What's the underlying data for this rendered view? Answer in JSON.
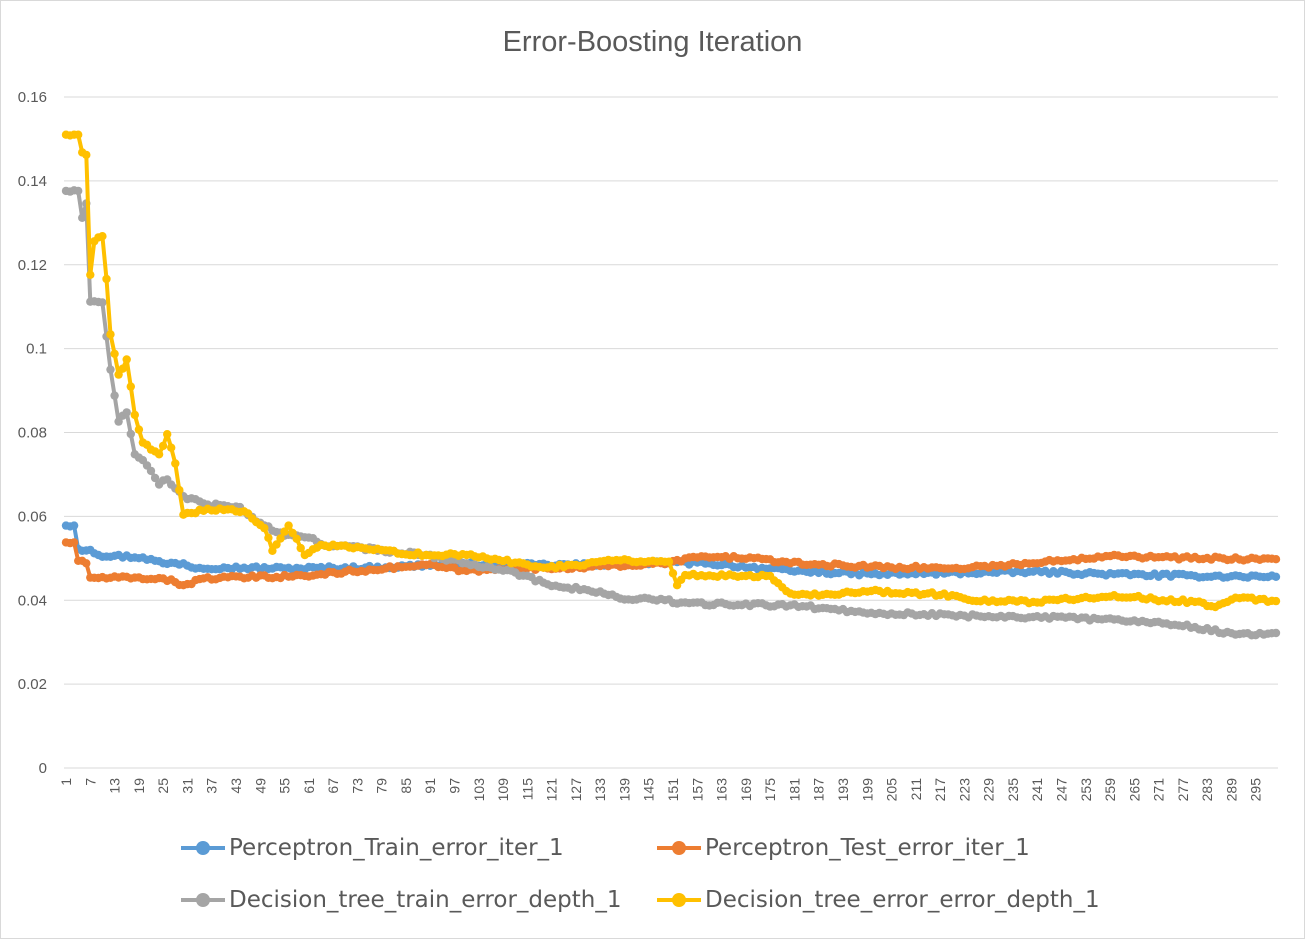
{
  "chart_data": {
    "type": "line",
    "title": "Error-Boosting Iteration",
    "xlabel": "",
    "ylabel": "",
    "ylim": [
      0,
      0.16
    ],
    "yticks": [
      "0",
      "0.02",
      "0.04",
      "0.06",
      "0.08",
      "0.1",
      "0.12",
      "0.14",
      "0.16"
    ],
    "x_range": [
      1,
      300
    ],
    "x_tick_step": 6,
    "grid": true,
    "legend_position": "bottom",
    "series": [
      {
        "name": "Perceptron_Train_error_iter_1",
        "color": "#5b9bd5",
        "keypoints": [
          [
            1,
            0.0578
          ],
          [
            3,
            0.0578
          ],
          [
            4,
            0.0522
          ],
          [
            7,
            0.052
          ],
          [
            9,
            0.0508
          ],
          [
            20,
            0.0502
          ],
          [
            25,
            0.0488
          ],
          [
            30,
            0.0488
          ],
          [
            32,
            0.0478
          ],
          [
            40,
            0.0478
          ],
          [
            55,
            0.0476
          ],
          [
            80,
            0.0478
          ],
          [
            90,
            0.0484
          ],
          [
            100,
            0.0486
          ],
          [
            120,
            0.0484
          ],
          [
            140,
            0.0486
          ],
          [
            150,
            0.049
          ],
          [
            160,
            0.0488
          ],
          [
            180,
            0.047
          ],
          [
            200,
            0.0462
          ],
          [
            240,
            0.0468
          ],
          [
            260,
            0.0462
          ],
          [
            280,
            0.0458
          ],
          [
            300,
            0.0456
          ]
        ]
      },
      {
        "name": "Perceptron_Test_error_iter_1",
        "color": "#ed7d31",
        "keypoints": [
          [
            1,
            0.0538
          ],
          [
            3,
            0.0538
          ],
          [
            4,
            0.0494
          ],
          [
            6,
            0.0488
          ],
          [
            7,
            0.0454
          ],
          [
            25,
            0.0452
          ],
          [
            30,
            0.0436
          ],
          [
            35,
            0.0452
          ],
          [
            60,
            0.0458
          ],
          [
            70,
            0.0468
          ],
          [
            80,
            0.0476
          ],
          [
            90,
            0.0484
          ],
          [
            100,
            0.047
          ],
          [
            110,
            0.0474
          ],
          [
            120,
            0.0476
          ],
          [
            150,
            0.0488
          ],
          [
            155,
            0.0502
          ],
          [
            170,
            0.0502
          ],
          [
            180,
            0.0488
          ],
          [
            200,
            0.048
          ],
          [
            220,
            0.0476
          ],
          [
            240,
            0.0488
          ],
          [
            250,
            0.0498
          ],
          [
            260,
            0.0508
          ],
          [
            270,
            0.0502
          ],
          [
            300,
            0.0498
          ]
        ]
      },
      {
        "name": "Decision_tree_train_error_depth_1",
        "color": "#a5a5a5",
        "keypoints": [
          [
            1,
            0.1376
          ],
          [
            4,
            0.1376
          ],
          [
            5,
            0.1312
          ],
          [
            6,
            0.1346
          ],
          [
            7,
            0.1112
          ],
          [
            10,
            0.111
          ],
          [
            12,
            0.095
          ],
          [
            14,
            0.0826
          ],
          [
            16,
            0.0848
          ],
          [
            18,
            0.0748
          ],
          [
            20,
            0.0734
          ],
          [
            24,
            0.0676
          ],
          [
            26,
            0.0688
          ],
          [
            30,
            0.0648
          ],
          [
            36,
            0.0628
          ],
          [
            44,
            0.0622
          ],
          [
            48,
            0.0588
          ],
          [
            55,
            0.0554
          ],
          [
            62,
            0.0548
          ],
          [
            64,
            0.0534
          ],
          [
            90,
            0.0508
          ],
          [
            100,
            0.0488
          ],
          [
            110,
            0.0472
          ],
          [
            120,
            0.0438
          ],
          [
            130,
            0.0424
          ],
          [
            140,
            0.0402
          ],
          [
            150,
            0.0402
          ],
          [
            152,
            0.0392
          ],
          [
            180,
            0.0388
          ],
          [
            200,
            0.037
          ],
          [
            220,
            0.0364
          ],
          [
            240,
            0.036
          ],
          [
            260,
            0.0354
          ],
          [
            270,
            0.0348
          ],
          [
            280,
            0.0336
          ],
          [
            290,
            0.0318
          ],
          [
            300,
            0.0322
          ]
        ]
      },
      {
        "name": "Decision_tree_error_error_depth_1",
        "color": "#ffc000",
        "keypoints": [
          [
            1,
            0.151
          ],
          [
            4,
            0.151
          ],
          [
            5,
            0.1468
          ],
          [
            6,
            0.1462
          ],
          [
            7,
            0.1176
          ],
          [
            8,
            0.1256
          ],
          [
            10,
            0.1268
          ],
          [
            11,
            0.1166
          ],
          [
            12,
            0.1034
          ],
          [
            14,
            0.0938
          ],
          [
            16,
            0.0974
          ],
          [
            18,
            0.0842
          ],
          [
            20,
            0.0776
          ],
          [
            24,
            0.0748
          ],
          [
            26,
            0.0796
          ],
          [
            28,
            0.0726
          ],
          [
            30,
            0.0604
          ],
          [
            36,
            0.0618
          ],
          [
            45,
            0.0612
          ],
          [
            50,
            0.0572
          ],
          [
            52,
            0.0518
          ],
          [
            56,
            0.0578
          ],
          [
            60,
            0.0508
          ],
          [
            64,
            0.0532
          ],
          [
            90,
            0.0508
          ],
          [
            100,
            0.0508
          ],
          [
            120,
            0.0478
          ],
          [
            130,
            0.0488
          ],
          [
            135,
            0.0496
          ],
          [
            150,
            0.0492
          ],
          [
            152,
            0.0436
          ],
          [
            154,
            0.046
          ],
          [
            175,
            0.0458
          ],
          [
            180,
            0.0416
          ],
          [
            190,
            0.0414
          ],
          [
            200,
            0.0422
          ],
          [
            220,
            0.0412
          ],
          [
            226,
            0.0398
          ],
          [
            240,
            0.0396
          ],
          [
            260,
            0.0412
          ],
          [
            270,
            0.0402
          ],
          [
            280,
            0.0396
          ],
          [
            285,
            0.0384
          ],
          [
            290,
            0.0406
          ],
          [
            300,
            0.0398
          ]
        ]
      }
    ]
  }
}
